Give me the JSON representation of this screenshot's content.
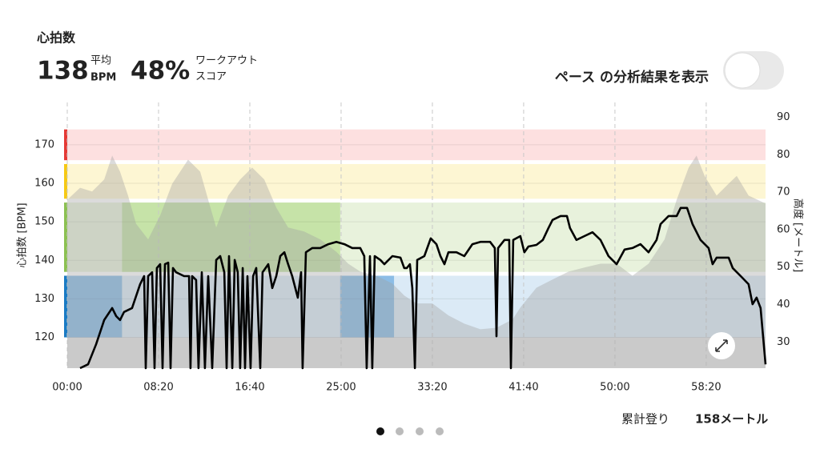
{
  "header": {
    "title": "心拍数",
    "avg_value": "138",
    "avg_label": "平均",
    "avg_unit": "BPM",
    "score_value": "48%",
    "score_label_1": "ワークアウト",
    "score_label_2": "スコア",
    "toggle_label": "ペース の分析結果を表示"
  },
  "chart_data": {
    "type": "line",
    "ylabel": "心拍数 [BPM]",
    "y2label": "高度 [メートル]",
    "xlim": [
      0,
      3825
    ],
    "xticks": [
      {
        "value": 0,
        "label": "00:00"
      },
      {
        "value": 500,
        "label": "08:20"
      },
      {
        "value": 1000,
        "label": "16:40"
      },
      {
        "value": 1500,
        "label": "25:00"
      },
      {
        "value": 2000,
        "label": "33:20"
      },
      {
        "value": 2500,
        "label": "41:40"
      },
      {
        "value": 3000,
        "label": "50:00"
      },
      {
        "value": 3500,
        "label": "58:20"
      }
    ],
    "ylim": [
      112,
      181
    ],
    "yticks": [
      120,
      130,
      140,
      150,
      160,
      170
    ],
    "y2lim": [
      23,
      94
    ],
    "y2ticks": [
      30,
      40,
      50,
      60,
      70,
      80,
      90
    ],
    "grid": true,
    "zones": [
      {
        "range": [
          120,
          136
        ],
        "color": "#dbeaf6",
        "highlight": "#8cbde6",
        "marker": "#1a7bc4"
      },
      {
        "range": [
          137,
          155
        ],
        "color": "#e8f2dc",
        "highlight": "#c6e3a8",
        "marker": "#8cc152"
      },
      {
        "range": [
          156,
          165
        ],
        "color": "#fdf6d3",
        "marker": "#f6c913"
      },
      {
        "range": [
          166,
          174
        ],
        "color": "#fde0e0",
        "marker": "#e53935"
      },
      {
        "range": [
          112,
          120
        ],
        "color": "#e4e4e4"
      }
    ],
    "highlights": [
      {
        "zone": 0,
        "range": [
          0,
          300
        ]
      },
      {
        "zone": 1,
        "range": [
          300,
          1495
        ]
      },
      {
        "zone": 0,
        "range": [
          1495,
          1790
        ]
      }
    ],
    "series": [
      {
        "color": "#000000",
        "x": [
          70,
          114,
          158,
          202,
          246,
          268,
          289,
          311,
          355,
          399,
          421,
          430,
          443,
          465,
          478,
          491,
          509,
          522,
          535,
          553,
          566,
          579,
          596,
          640,
          667,
          675,
          684,
          706,
          719,
          737,
          754,
          772,
          794,
          816,
          838,
          860,
          873,
          886,
          904,
          917,
          934,
          947,
          961,
          974,
          987,
          1004,
          1018,
          1035,
          1057,
          1070,
          1101,
          1123,
          1145,
          1167,
          1189,
          1210,
          1232,
          1263,
          1281,
          1289,
          1307,
          1342,
          1386,
          1430,
          1474,
          1518,
          1561,
          1605,
          1627,
          1640,
          1658,
          1671,
          1684,
          1715,
          1737,
          1781,
          1825,
          1846,
          1860,
          1877,
          1890,
          1904,
          1917,
          1956,
          1991,
          2022,
          2044,
          2066,
          2088,
          2132,
          2175,
          2219,
          2263,
          2316,
          2342,
          2351,
          2360,
          2395,
          2421,
          2430,
          2443,
          2482,
          2504,
          2526,
          2570,
          2605,
          2636,
          2658,
          2702,
          2737,
          2754,
          2789,
          2833,
          2877,
          2921,
          2965,
          3009,
          3053,
          3096,
          3140,
          3184,
          3228,
          3250,
          3294,
          3338,
          3360,
          3395,
          3425,
          3469,
          3513,
          3535,
          3557,
          3623,
          3645,
          3689,
          3732,
          3754,
          3776,
          3798,
          3825
        ],
        "values": [
          112,
          113,
          118.2,
          124.5,
          127.6,
          125.5,
          124.5,
          126.6,
          127.6,
          133.8,
          135.9,
          112,
          135.9,
          136.9,
          112,
          138,
          139,
          112,
          139,
          139.4,
          112,
          138,
          136.9,
          135.9,
          135.9,
          112,
          135.9,
          134.9,
          112,
          136.9,
          112,
          135.9,
          112,
          140.1,
          141.1,
          136.9,
          112,
          141.1,
          112,
          140.1,
          136.9,
          112,
          138,
          112,
          135.9,
          112,
          135.9,
          138,
          112,
          136.9,
          139,
          132.8,
          135.9,
          141.1,
          142.1,
          139,
          135.9,
          130.3,
          136.9,
          112,
          142.1,
          143.2,
          143.2,
          144.2,
          144.8,
          144.2,
          143.2,
          143.2,
          141.1,
          112,
          141.1,
          112,
          141.1,
          140.1,
          139,
          141.1,
          140.7,
          138,
          138,
          139,
          132.8,
          112,
          140.1,
          141.1,
          145.7,
          144.2,
          141.1,
          139,
          142.1,
          142.1,
          141.1,
          144.2,
          144.8,
          144.8,
          143.2,
          120.3,
          143.2,
          145.3,
          145.3,
          112,
          145.3,
          146.3,
          142.1,
          143.6,
          144,
          145.3,
          148.4,
          150.5,
          151.5,
          151.5,
          148.4,
          145.3,
          146.3,
          147.3,
          145.3,
          141.1,
          139,
          142.8,
          143.2,
          144.2,
          142.1,
          145.3,
          149.4,
          151.5,
          151.5,
          153.6,
          153.6,
          149.4,
          145.3,
          143.2,
          139,
          140.7,
          140.7,
          138,
          135.9,
          133.8,
          128.6,
          130.3,
          127.6,
          113
        ]
      },
      {
        "axis": "y2",
        "color": "#a0a0a0",
        "x": [
          0,
          70,
          136,
          202,
          246,
          289,
          333,
          377,
          443,
          509,
          575,
          662,
          728,
          772,
          816,
          882,
          947,
          1013,
          1079,
          1145,
          1210,
          1298,
          1386,
          1474,
          1539,
          1605,
          1693,
          1781,
          1846,
          1912,
          2000,
          2088,
          2175,
          2263,
          2351,
          2439,
          2482,
          2570,
          2658,
          2746,
          2833,
          2921,
          3009,
          3096,
          3184,
          3272,
          3338,
          3404,
          3447,
          3491,
          3557,
          3623,
          3667,
          3732,
          3825
        ],
        "values": [
          68,
          71.2,
          70.2,
          73.4,
          79.8,
          75.5,
          69.1,
          61.6,
          57.4,
          63.8,
          72.3,
          78.7,
          75.5,
          68,
          60.6,
          69.1,
          73.4,
          76.6,
          73.4,
          65.9,
          60.6,
          59.5,
          57.4,
          54.1,
          50.9,
          48.8,
          47.7,
          45.6,
          42.4,
          40.3,
          40.3,
          37.1,
          34.9,
          33.4,
          33.8,
          36,
          39.2,
          44.5,
          46.7,
          48.8,
          49.9,
          50.9,
          50.9,
          47.7,
          50.9,
          57.4,
          68,
          76.6,
          79.8,
          74.4,
          69.1,
          72.3,
          74.4,
          69.1,
          67
        ]
      }
    ]
  },
  "footer": {
    "label": "累計登り",
    "value": "158メートル"
  }
}
